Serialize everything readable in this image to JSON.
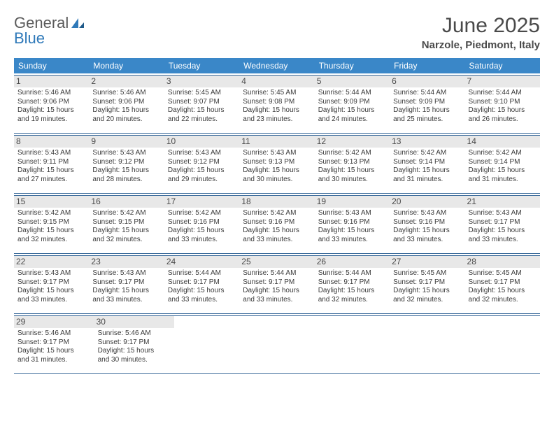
{
  "logo": {
    "text1": "General",
    "text2": "Blue"
  },
  "title": "June 2025",
  "location": "Narzole, Piedmont, Italy",
  "days_of_week": [
    "Sunday",
    "Monday",
    "Tuesday",
    "Wednesday",
    "Thursday",
    "Friday",
    "Saturday"
  ],
  "colors": {
    "header_bar": "#3a87c8",
    "daynum_bg": "#e8e8e8",
    "border": "#3a6a9a",
    "logo_blue": "#2f79b9",
    "text": "#4a4a4a"
  },
  "weeks": [
    [
      {
        "n": "1",
        "sr": "Sunrise: 5:46 AM",
        "ss": "Sunset: 9:06 PM",
        "d1": "Daylight: 15 hours",
        "d2": "and 19 minutes."
      },
      {
        "n": "2",
        "sr": "Sunrise: 5:46 AM",
        "ss": "Sunset: 9:06 PM",
        "d1": "Daylight: 15 hours",
        "d2": "and 20 minutes."
      },
      {
        "n": "3",
        "sr": "Sunrise: 5:45 AM",
        "ss": "Sunset: 9:07 PM",
        "d1": "Daylight: 15 hours",
        "d2": "and 22 minutes."
      },
      {
        "n": "4",
        "sr": "Sunrise: 5:45 AM",
        "ss": "Sunset: 9:08 PM",
        "d1": "Daylight: 15 hours",
        "d2": "and 23 minutes."
      },
      {
        "n": "5",
        "sr": "Sunrise: 5:44 AM",
        "ss": "Sunset: 9:09 PM",
        "d1": "Daylight: 15 hours",
        "d2": "and 24 minutes."
      },
      {
        "n": "6",
        "sr": "Sunrise: 5:44 AM",
        "ss": "Sunset: 9:09 PM",
        "d1": "Daylight: 15 hours",
        "d2": "and 25 minutes."
      },
      {
        "n": "7",
        "sr": "Sunrise: 5:44 AM",
        "ss": "Sunset: 9:10 PM",
        "d1": "Daylight: 15 hours",
        "d2": "and 26 minutes."
      }
    ],
    [
      {
        "n": "8",
        "sr": "Sunrise: 5:43 AM",
        "ss": "Sunset: 9:11 PM",
        "d1": "Daylight: 15 hours",
        "d2": "and 27 minutes."
      },
      {
        "n": "9",
        "sr": "Sunrise: 5:43 AM",
        "ss": "Sunset: 9:12 PM",
        "d1": "Daylight: 15 hours",
        "d2": "and 28 minutes."
      },
      {
        "n": "10",
        "sr": "Sunrise: 5:43 AM",
        "ss": "Sunset: 9:12 PM",
        "d1": "Daylight: 15 hours",
        "d2": "and 29 minutes."
      },
      {
        "n": "11",
        "sr": "Sunrise: 5:43 AM",
        "ss": "Sunset: 9:13 PM",
        "d1": "Daylight: 15 hours",
        "d2": "and 30 minutes."
      },
      {
        "n": "12",
        "sr": "Sunrise: 5:42 AM",
        "ss": "Sunset: 9:13 PM",
        "d1": "Daylight: 15 hours",
        "d2": "and 30 minutes."
      },
      {
        "n": "13",
        "sr": "Sunrise: 5:42 AM",
        "ss": "Sunset: 9:14 PM",
        "d1": "Daylight: 15 hours",
        "d2": "and 31 minutes."
      },
      {
        "n": "14",
        "sr": "Sunrise: 5:42 AM",
        "ss": "Sunset: 9:14 PM",
        "d1": "Daylight: 15 hours",
        "d2": "and 31 minutes."
      }
    ],
    [
      {
        "n": "15",
        "sr": "Sunrise: 5:42 AM",
        "ss": "Sunset: 9:15 PM",
        "d1": "Daylight: 15 hours",
        "d2": "and 32 minutes."
      },
      {
        "n": "16",
        "sr": "Sunrise: 5:42 AM",
        "ss": "Sunset: 9:15 PM",
        "d1": "Daylight: 15 hours",
        "d2": "and 32 minutes."
      },
      {
        "n": "17",
        "sr": "Sunrise: 5:42 AM",
        "ss": "Sunset: 9:16 PM",
        "d1": "Daylight: 15 hours",
        "d2": "and 33 minutes."
      },
      {
        "n": "18",
        "sr": "Sunrise: 5:42 AM",
        "ss": "Sunset: 9:16 PM",
        "d1": "Daylight: 15 hours",
        "d2": "and 33 minutes."
      },
      {
        "n": "19",
        "sr": "Sunrise: 5:43 AM",
        "ss": "Sunset: 9:16 PM",
        "d1": "Daylight: 15 hours",
        "d2": "and 33 minutes."
      },
      {
        "n": "20",
        "sr": "Sunrise: 5:43 AM",
        "ss": "Sunset: 9:16 PM",
        "d1": "Daylight: 15 hours",
        "d2": "and 33 minutes."
      },
      {
        "n": "21",
        "sr": "Sunrise: 5:43 AM",
        "ss": "Sunset: 9:17 PM",
        "d1": "Daylight: 15 hours",
        "d2": "and 33 minutes."
      }
    ],
    [
      {
        "n": "22",
        "sr": "Sunrise: 5:43 AM",
        "ss": "Sunset: 9:17 PM",
        "d1": "Daylight: 15 hours",
        "d2": "and 33 minutes."
      },
      {
        "n": "23",
        "sr": "Sunrise: 5:43 AM",
        "ss": "Sunset: 9:17 PM",
        "d1": "Daylight: 15 hours",
        "d2": "and 33 minutes."
      },
      {
        "n": "24",
        "sr": "Sunrise: 5:44 AM",
        "ss": "Sunset: 9:17 PM",
        "d1": "Daylight: 15 hours",
        "d2": "and 33 minutes."
      },
      {
        "n": "25",
        "sr": "Sunrise: 5:44 AM",
        "ss": "Sunset: 9:17 PM",
        "d1": "Daylight: 15 hours",
        "d2": "and 33 minutes."
      },
      {
        "n": "26",
        "sr": "Sunrise: 5:44 AM",
        "ss": "Sunset: 9:17 PM",
        "d1": "Daylight: 15 hours",
        "d2": "and 32 minutes."
      },
      {
        "n": "27",
        "sr": "Sunrise: 5:45 AM",
        "ss": "Sunset: 9:17 PM",
        "d1": "Daylight: 15 hours",
        "d2": "and 32 minutes."
      },
      {
        "n": "28",
        "sr": "Sunrise: 5:45 AM",
        "ss": "Sunset: 9:17 PM",
        "d1": "Daylight: 15 hours",
        "d2": "and 32 minutes."
      }
    ],
    [
      {
        "n": "29",
        "sr": "Sunrise: 5:46 AM",
        "ss": "Sunset: 9:17 PM",
        "d1": "Daylight: 15 hours",
        "d2": "and 31 minutes."
      },
      {
        "n": "30",
        "sr": "Sunrise: 5:46 AM",
        "ss": "Sunset: 9:17 PM",
        "d1": "Daylight: 15 hours",
        "d2": "and 30 minutes."
      },
      null,
      null,
      null,
      null,
      null
    ]
  ]
}
